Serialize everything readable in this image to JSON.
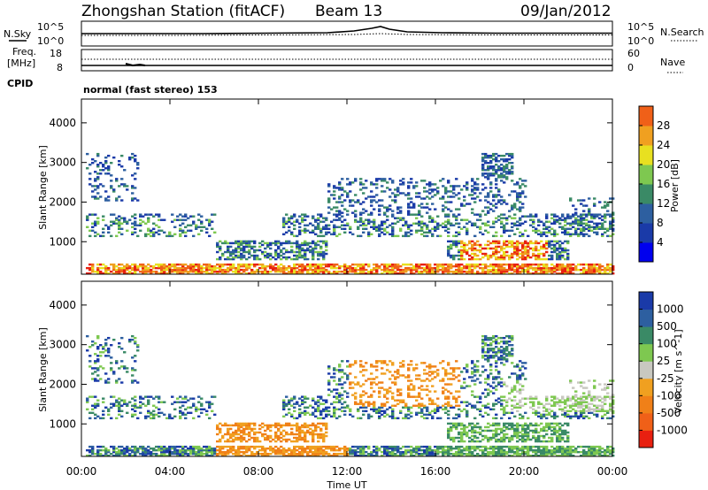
{
  "header": {
    "station": "Zhongshan Station (fitACF)",
    "beam": "Beam 13",
    "date": "09/Jan/2012"
  },
  "status_panels": {
    "nsky_label": "N.Sky",
    "nsky_ticks": [
      "10^5",
      "10^0"
    ],
    "nsearch_label": "N.Search",
    "nsearch_ticks": [
      "10^5",
      "10^0"
    ],
    "freq_label_1": "Freq.",
    "freq_label_2": "[MHz]",
    "freq_ticks": [
      "18",
      "8"
    ],
    "nave_label": "Nave",
    "nave_ticks": [
      "60",
      "0"
    ],
    "cpid_label": "CPID",
    "cpid_text": "normal (fast stereo) 153"
  },
  "colors": {
    "power_scale": [
      "#0000ee",
      "#1a3aa8",
      "#2d5fa0",
      "#3a8a66",
      "#7ec850",
      "#e8e020",
      "#f0a020",
      "#f06018",
      "#e82010"
    ],
    "velocity_scale": [
      "#1a3aa8",
      "#2d5fa0",
      "#3a8a66",
      "#7ec850",
      "#c8c8c0",
      "#f0a020",
      "#f08018",
      "#f06018",
      "#e82010"
    ]
  },
  "chart_data": [
    {
      "type": "heatmap",
      "name": "power",
      "ylabel": "Slant Range [km]",
      "ylim": [
        180,
        4600
      ],
      "y_ticks": [
        "1000",
        "2000",
        "3000",
        "4000"
      ],
      "colorbar_label": "Power [dB]",
      "colorbar_ticks": [
        "4",
        "8",
        "12",
        "16",
        "20",
        "24",
        "28"
      ]
    },
    {
      "type": "heatmap",
      "name": "velocity",
      "ylabel": "Slant Range [km]",
      "ylim": [
        180,
        4600
      ],
      "y_ticks": [
        "1000",
        "2000",
        "3000",
        "4000"
      ],
      "colorbar_label": "Velocity [m s^-1]",
      "colorbar_ticks": [
        "1000",
        "500",
        "100",
        "25",
        "-25",
        "-100",
        "-500",
        "-1000"
      ],
      "xlabel": "Time UT",
      "x_ticks": [
        "00:00",
        "04:00",
        "08:00",
        "12:00",
        "16:00",
        "20:00",
        "00:00"
      ],
      "xlim_hours": [
        0,
        24
      ]
    }
  ]
}
